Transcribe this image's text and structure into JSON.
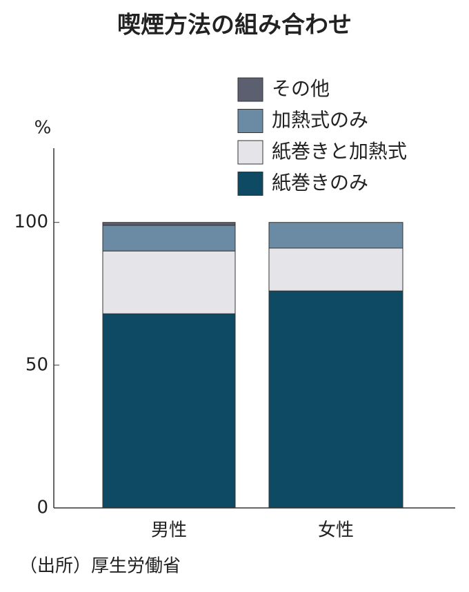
{
  "chart_data": {
    "type": "stacked_bar",
    "title": "喫煙方法の組み合わせ",
    "unit": "%",
    "categories": [
      "男性",
      "女性"
    ],
    "series": [
      {
        "name": "紙巻きのみ",
        "color": "#0e4a63",
        "values": [
          68,
          76
        ]
      },
      {
        "name": "紙巻きと加熱式",
        "color": "#e4e4e9",
        "values": [
          22,
          15
        ]
      },
      {
        "name": "加熱式のみ",
        "color": "#6b8ba4",
        "values": [
          9,
          9
        ]
      },
      {
        "name": "その他",
        "color": "#5b5f70",
        "values": [
          1,
          0
        ]
      }
    ],
    "ylim": [
      0,
      126
    ],
    "yticks": [
      0,
      50,
      100
    ],
    "source": "（出所）厚生労働省"
  }
}
